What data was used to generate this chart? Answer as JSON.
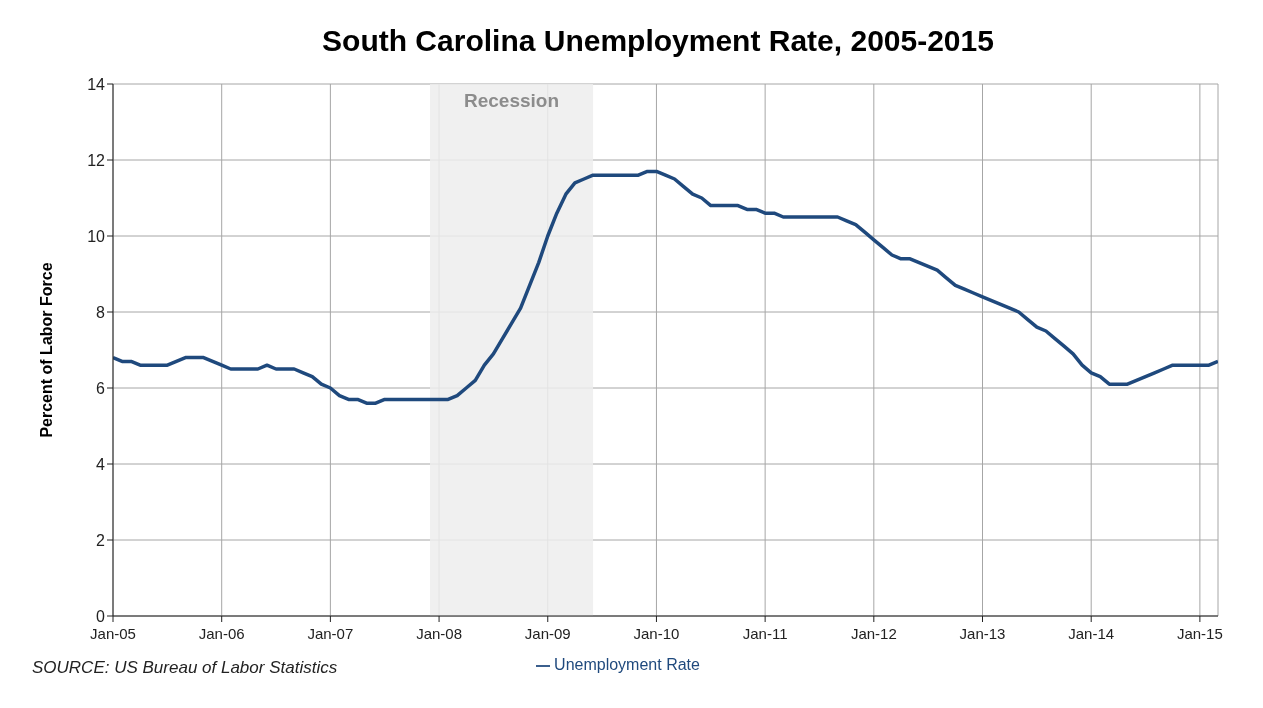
{
  "chart_data": {
    "type": "line",
    "title": "South Carolina Unemployment Rate, 2005-2015",
    "ylabel": "Percent of Labor Force",
    "x": [
      "2005-01",
      "2005-02",
      "2005-03",
      "2005-04",
      "2005-05",
      "2005-06",
      "2005-07",
      "2005-08",
      "2005-09",
      "2005-10",
      "2005-11",
      "2005-12",
      "2006-01",
      "2006-02",
      "2006-03",
      "2006-04",
      "2006-05",
      "2006-06",
      "2006-07",
      "2006-08",
      "2006-09",
      "2006-10",
      "2006-11",
      "2006-12",
      "2007-01",
      "2007-02",
      "2007-03",
      "2007-04",
      "2007-05",
      "2007-06",
      "2007-07",
      "2007-08",
      "2007-09",
      "2007-10",
      "2007-11",
      "2007-12",
      "2008-01",
      "2008-02",
      "2008-03",
      "2008-04",
      "2008-05",
      "2008-06",
      "2008-07",
      "2008-08",
      "2008-09",
      "2008-10",
      "2008-11",
      "2008-12",
      "2009-01",
      "2009-02",
      "2009-03",
      "2009-04",
      "2009-05",
      "2009-06",
      "2009-07",
      "2009-08",
      "2009-09",
      "2009-10",
      "2009-11",
      "2009-12",
      "2010-01",
      "2010-02",
      "2010-03",
      "2010-04",
      "2010-05",
      "2010-06",
      "2010-07",
      "2010-08",
      "2010-09",
      "2010-10",
      "2010-11",
      "2010-12",
      "2011-01",
      "2011-02",
      "2011-03",
      "2011-04",
      "2011-05",
      "2011-06",
      "2011-07",
      "2011-08",
      "2011-09",
      "2011-10",
      "2011-11",
      "2011-12",
      "2012-01",
      "2012-02",
      "2012-03",
      "2012-04",
      "2012-05",
      "2012-06",
      "2012-07",
      "2012-08",
      "2012-09",
      "2012-10",
      "2012-11",
      "2012-12",
      "2013-01",
      "2013-02",
      "2013-03",
      "2013-04",
      "2013-05",
      "2013-06",
      "2013-07",
      "2013-08",
      "2013-09",
      "2013-10",
      "2013-11",
      "2013-12",
      "2014-01",
      "2014-02",
      "2014-03",
      "2014-04",
      "2014-05",
      "2014-06",
      "2014-07",
      "2014-08",
      "2014-09",
      "2014-10",
      "2014-11",
      "2014-12",
      "2015-01",
      "2015-02",
      "2015-03"
    ],
    "series": [
      {
        "name": "Unemployment Rate",
        "color": "#1f497d",
        "values": [
          6.8,
          6.7,
          6.7,
          6.6,
          6.6,
          6.6,
          6.6,
          6.7,
          6.8,
          6.8,
          6.8,
          6.7,
          6.6,
          6.5,
          6.5,
          6.5,
          6.5,
          6.6,
          6.5,
          6.5,
          6.5,
          6.4,
          6.3,
          6.1,
          6.0,
          5.8,
          5.7,
          5.7,
          5.6,
          5.6,
          5.7,
          5.7,
          5.7,
          5.7,
          5.7,
          5.7,
          5.7,
          5.7,
          5.8,
          6.0,
          6.2,
          6.6,
          6.9,
          7.3,
          7.7,
          8.1,
          8.7,
          9.3,
          10.0,
          10.6,
          11.1,
          11.4,
          11.5,
          11.6,
          11.6,
          11.6,
          11.6,
          11.6,
          11.6,
          11.7,
          11.7,
          11.6,
          11.5,
          11.3,
          11.1,
          11.0,
          10.8,
          10.8,
          10.8,
          10.8,
          10.7,
          10.7,
          10.6,
          10.6,
          10.5,
          10.5,
          10.5,
          10.5,
          10.5,
          10.5,
          10.5,
          10.4,
          10.3,
          10.1,
          9.9,
          9.7,
          9.5,
          9.4,
          9.4,
          9.3,
          9.2,
          9.1,
          8.9,
          8.7,
          8.6,
          8.5,
          8.4,
          8.3,
          8.2,
          8.1,
          8.0,
          7.8,
          7.6,
          7.5,
          7.3,
          7.1,
          6.9,
          6.6,
          6.4,
          6.3,
          6.1,
          6.1,
          6.1,
          6.2,
          6.3,
          6.4,
          6.5,
          6.6,
          6.6,
          6.6,
          6.6,
          6.6,
          6.7
        ]
      }
    ],
    "xlim": [
      "2005-01",
      "2015-03"
    ],
    "xticks": [
      {
        "value": "2005-01",
        "label": "Jan-05"
      },
      {
        "value": "2006-01",
        "label": "Jan-06"
      },
      {
        "value": "2007-01",
        "label": "Jan-07"
      },
      {
        "value": "2008-01",
        "label": "Jan-08"
      },
      {
        "value": "2009-01",
        "label": "Jan-09"
      },
      {
        "value": "2010-01",
        "label": "Jan-10"
      },
      {
        "value": "2011-01",
        "label": "Jan-11"
      },
      {
        "value": "2012-01",
        "label": "Jan-12"
      },
      {
        "value": "2013-01",
        "label": "Jan-13"
      },
      {
        "value": "2014-01",
        "label": "Jan-14"
      },
      {
        "value": "2015-01",
        "label": "Jan-15"
      }
    ],
    "ylim": [
      0,
      14
    ],
    "yticks": [
      0,
      2,
      4,
      6,
      8,
      10,
      12,
      14
    ],
    "bands": [
      {
        "axis": "x",
        "from": "2007-12",
        "to": "2009-06",
        "label": "Recession",
        "color": "#ededed"
      }
    ],
    "annotations": [
      "SOURCE: US Bureau of Labor Statistics"
    ],
    "grid": true,
    "legend": "bottom",
    "marker": "none",
    "line_style": "solid"
  }
}
